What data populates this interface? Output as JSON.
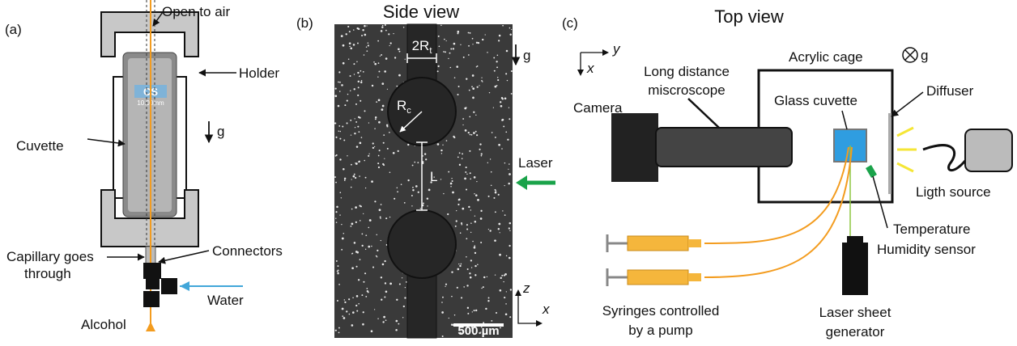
{
  "panel_a": {
    "label": "(a)",
    "open_to_air": "Open to air",
    "holder": "Holder",
    "cuvette": "Cuvette",
    "cuvette_print": [
      "CS",
      "10.00mm"
    ],
    "gravity": "g",
    "connectors": "Connectors",
    "capillary": [
      "Capillary goes",
      "through"
    ],
    "water": "Water",
    "alcohol": "Alcohol"
  },
  "panel_b": {
    "label": "(b)",
    "title": "Side view",
    "tube_radius": {
      "main": "2R",
      "sub": "t"
    },
    "cap_radius": {
      "main": "R",
      "sub": "c"
    },
    "distance": "L",
    "gravity": "g",
    "laser": "Laser",
    "scale_bar": "500 µm",
    "axis_z": "z",
    "axis_x": "x"
  },
  "panel_c": {
    "label": "(c)",
    "title": "Top view",
    "axis_y": "y",
    "axis_x": "x",
    "microscope": [
      "Long distance",
      "miscroscope"
    ],
    "cage": "Acrylic cage",
    "gravity": "g",
    "camera": "Camera",
    "glass_cuvette": "Glass cuvette",
    "diffuser": "Diffuser",
    "light_source": "Ligth source",
    "sensor": [
      "Temperature",
      "Humidity sensor"
    ],
    "syringes": [
      "Syringes controlled",
      "by a pump"
    ],
    "laser_generator": [
      "Laser sheet",
      "generator"
    ]
  }
}
